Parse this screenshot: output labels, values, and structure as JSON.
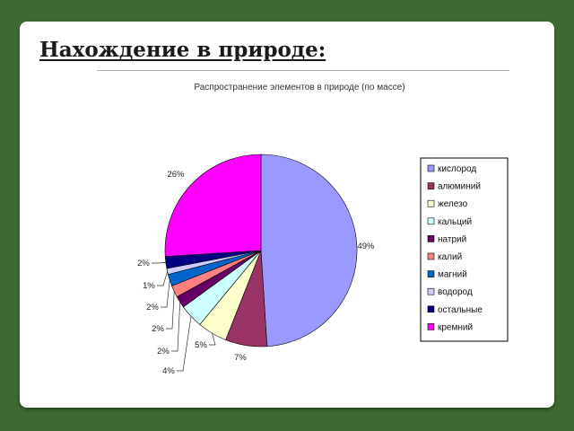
{
  "slide": {
    "title": "Нахождение в природе:"
  },
  "chart_data": {
    "type": "pie",
    "title": "Распространение элементов в природе (по массе)",
    "categories": [
      "кислород",
      "алюминий",
      "железо",
      "кальций",
      "натрий",
      "калий",
      "магний",
      "водород",
      "остальные",
      "кремний"
    ],
    "values": [
      49,
      7,
      5,
      4,
      2,
      2,
      2,
      1,
      2,
      26
    ],
    "labels": [
      "49%",
      "7%",
      "5%",
      "4%",
      "2%",
      "2%",
      "2%",
      "1%",
      "2%",
      "26%"
    ],
    "colors": [
      "#9999ff",
      "#993366",
      "#ffffcc",
      "#ccffff",
      "#660066",
      "#ff8080",
      "#0066cc",
      "#ccccff",
      "#000080",
      "#ff00ff"
    ],
    "legend": "right"
  }
}
